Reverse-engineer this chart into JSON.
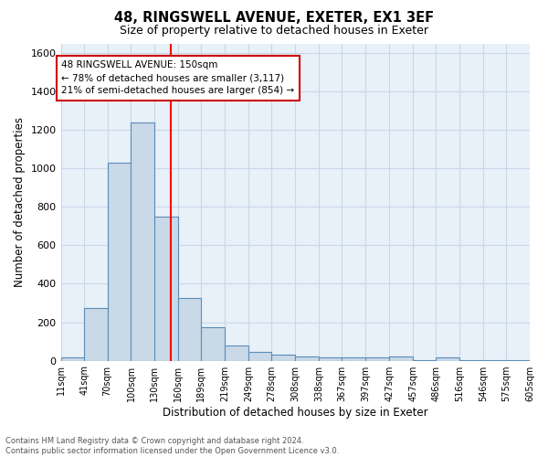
{
  "title1": "48, RINGSWELL AVENUE, EXETER, EX1 3EF",
  "title2": "Size of property relative to detached houses in Exeter",
  "xlabel": "Distribution of detached houses by size in Exeter",
  "ylabel": "Number of detached properties",
  "bin_edges": [
    11,
    41,
    70,
    100,
    130,
    160,
    189,
    219,
    249,
    278,
    308,
    338,
    367,
    397,
    427,
    457,
    486,
    516,
    546,
    575,
    605
  ],
  "bar_heights": [
    15,
    275,
    1030,
    1240,
    750,
    325,
    175,
    80,
    45,
    30,
    20,
    15,
    15,
    15,
    20,
    2,
    15,
    2,
    2,
    2
  ],
  "bar_color": "#c9d9e8",
  "bar_edge_color": "#5b8db8",
  "vline_x": 150,
  "vline_color": "red",
  "ylim": [
    0,
    1650
  ],
  "yticks": [
    0,
    200,
    400,
    600,
    800,
    1000,
    1200,
    1400,
    1600
  ],
  "annotation_text": "48 RINGSWELL AVENUE: 150sqm\n← 78% of detached houses are smaller (3,117)\n21% of semi-detached houses are larger (854) →",
  "annotation_box_color": "white",
  "annotation_box_edge_color": "#cc0000",
  "footer_text": "Contains HM Land Registry data © Crown copyright and database right 2024.\nContains public sector information licensed under the Open Government Licence v3.0.",
  "grid_color": "#c8d8e8",
  "background_color": "#e8f0f8"
}
